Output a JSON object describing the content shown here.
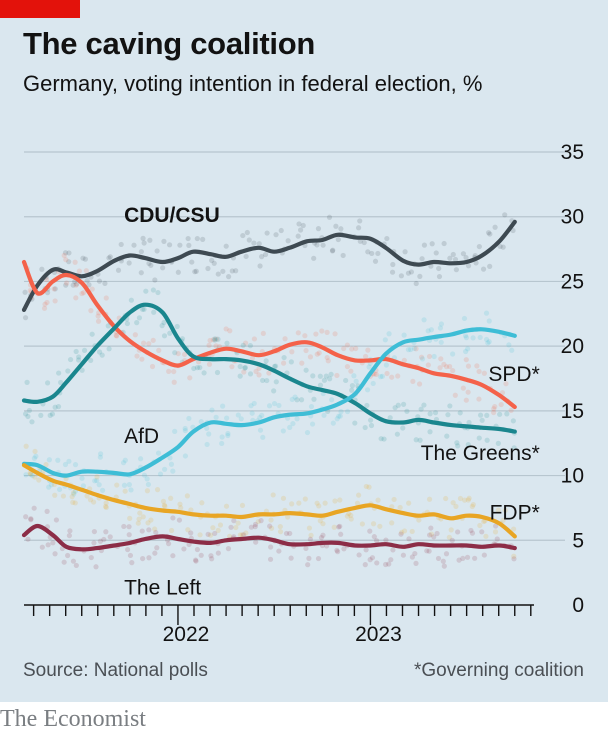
{
  "header": {
    "title": "The caving coalition",
    "subtitle": "Germany, voting intention in federal election, %"
  },
  "footer": {
    "source": "Source: National polls",
    "note": "*Governing coalition",
    "brand": "The Economist"
  },
  "colors": {
    "background": "#dae7ef",
    "accent": "#e3120b",
    "grid": "#b7c6cf"
  },
  "chart_data": {
    "type": "line",
    "title": "The caving coalition",
    "subtitle": "Germany, voting intention in federal election, %",
    "xlabel": "",
    "ylabel": "",
    "ylim": [
      0,
      35
    ],
    "xlim": [
      2021.2,
      2023.85
    ],
    "yticks": [
      0,
      5,
      10,
      15,
      20,
      25,
      30,
      35
    ],
    "xticks": [
      {
        "label": "2022",
        "value": 2022.0
      },
      {
        "label": "2023",
        "value": 2023.0
      }
    ],
    "grid": true,
    "series": [
      {
        "name": "CDU/CSU",
        "color": "#3e4a52",
        "x": [
          2021.2,
          2021.27,
          2021.35,
          2021.42,
          2021.5,
          2021.58,
          2021.67,
          2021.75,
          2021.83,
          2021.92,
          2022.0,
          2022.08,
          2022.17,
          2022.25,
          2022.33,
          2022.42,
          2022.5,
          2022.58,
          2022.67,
          2022.75,
          2022.83,
          2022.92,
          2023.0,
          2023.08,
          2023.17,
          2023.25,
          2023.33,
          2023.42,
          2023.5,
          2023.58,
          2023.67,
          2023.75
        ],
        "values": [
          22.8,
          24.7,
          25.9,
          25.7,
          25.4,
          25.8,
          26.6,
          27.0,
          26.8,
          26.5,
          26.8,
          27.3,
          27.1,
          26.9,
          27.3,
          27.6,
          27.3,
          27.6,
          28.1,
          28.2,
          28.6,
          28.4,
          28.3,
          27.6,
          26.6,
          26.3,
          26.5,
          26.4,
          26.5,
          27.0,
          28.1,
          29.6
        ]
      },
      {
        "name": "SPD*",
        "color": "#f4624a",
        "x": [
          2021.2,
          2021.27,
          2021.35,
          2021.42,
          2021.5,
          2021.58,
          2021.67,
          2021.75,
          2021.83,
          2021.92,
          2022.0,
          2022.08,
          2022.17,
          2022.25,
          2022.33,
          2022.42,
          2022.5,
          2022.58,
          2022.67,
          2022.75,
          2022.83,
          2022.92,
          2023.0,
          2023.08,
          2023.17,
          2023.25,
          2023.33,
          2023.42,
          2023.5,
          2023.58,
          2023.67,
          2023.75
        ],
        "values": [
          26.5,
          24.1,
          25.0,
          25.5,
          24.9,
          23.2,
          21.5,
          20.4,
          19.6,
          18.9,
          18.5,
          19.0,
          19.5,
          19.8,
          19.6,
          19.3,
          19.6,
          20.1,
          20.3,
          19.9,
          19.3,
          18.9,
          18.9,
          19.0,
          18.6,
          18.3,
          17.9,
          17.7,
          17.4,
          17.0,
          16.2,
          15.3
        ]
      },
      {
        "name": "AfD",
        "color": "#1a868e",
        "x": [
          2021.2,
          2021.27,
          2021.35,
          2021.42,
          2021.5,
          2021.58,
          2021.67,
          2021.75,
          2021.83,
          2021.92,
          2022.0,
          2022.08,
          2022.17,
          2022.25,
          2022.33,
          2022.42,
          2022.5,
          2022.58,
          2022.67,
          2022.75,
          2022.83,
          2022.92,
          2023.0,
          2023.08,
          2023.17,
          2023.25,
          2023.33,
          2023.42,
          2023.5,
          2023.58,
          2023.67,
          2023.75
        ],
        "values": [
          15.8,
          15.7,
          16.1,
          17.2,
          18.6,
          20.0,
          21.4,
          22.6,
          23.2,
          22.6,
          20.6,
          19.2,
          19.0,
          19.0,
          18.9,
          18.6,
          18.1,
          17.5,
          16.9,
          16.6,
          16.3,
          15.6,
          14.8,
          14.2,
          14.1,
          14.3,
          14.1,
          13.9,
          13.8,
          13.7,
          13.6,
          13.4
        ]
      },
      {
        "name": "The Greens*",
        "color": "#3ebdd6",
        "x": [
          2021.2,
          2021.27,
          2021.35,
          2021.42,
          2021.5,
          2021.58,
          2021.67,
          2021.75,
          2021.83,
          2021.92,
          2022.0,
          2022.08,
          2022.17,
          2022.25,
          2022.33,
          2022.42,
          2022.5,
          2022.58,
          2022.67,
          2022.75,
          2022.83,
          2022.92,
          2023.0,
          2023.08,
          2023.17,
          2023.25,
          2023.33,
          2023.42,
          2023.5,
          2023.58,
          2023.67,
          2023.75
        ],
        "values": [
          10.9,
          10.8,
          10.2,
          10.0,
          10.3,
          10.3,
          10.2,
          10.1,
          10.6,
          11.4,
          12.2,
          13.4,
          14.1,
          14.0,
          13.9,
          14.1,
          14.5,
          14.7,
          14.8,
          15.1,
          15.5,
          16.3,
          17.9,
          19.4,
          20.3,
          20.5,
          20.7,
          20.9,
          21.2,
          21.3,
          21.1,
          20.8
        ]
      },
      {
        "name": "FDP*",
        "color": "#e8a524",
        "x": [
          2021.2,
          2021.27,
          2021.35,
          2021.42,
          2021.5,
          2021.58,
          2021.67,
          2021.75,
          2021.83,
          2021.92,
          2022.0,
          2022.08,
          2022.17,
          2022.25,
          2022.33,
          2022.42,
          2022.5,
          2022.58,
          2022.67,
          2022.75,
          2022.83,
          2022.92,
          2023.0,
          2023.08,
          2023.17,
          2023.25,
          2023.33,
          2023.42,
          2023.5,
          2023.58,
          2023.67,
          2023.75
        ],
        "values": [
          10.8,
          10.2,
          9.6,
          9.3,
          8.9,
          8.5,
          8.1,
          7.8,
          7.5,
          7.3,
          7.2,
          7.0,
          6.9,
          6.9,
          6.8,
          7.0,
          7.0,
          7.1,
          7.0,
          6.9,
          7.2,
          7.5,
          7.7,
          7.4,
          7.1,
          6.9,
          7.0,
          6.7,
          6.9,
          6.8,
          6.3,
          5.3
        ]
      },
      {
        "name": "The Left",
        "color": "#8c2d47",
        "x": [
          2021.2,
          2021.27,
          2021.35,
          2021.42,
          2021.5,
          2021.58,
          2021.67,
          2021.75,
          2021.83,
          2021.92,
          2022.0,
          2022.08,
          2022.17,
          2022.25,
          2022.33,
          2022.42,
          2022.5,
          2022.58,
          2022.67,
          2022.75,
          2022.83,
          2022.92,
          2023.0,
          2023.08,
          2023.17,
          2023.25,
          2023.33,
          2023.42,
          2023.5,
          2023.58,
          2023.67,
          2023.75
        ],
        "values": [
          5.4,
          6.1,
          5.4,
          4.5,
          4.3,
          4.4,
          4.6,
          4.8,
          5.1,
          5.3,
          5.1,
          4.9,
          4.8,
          5.0,
          5.1,
          5.2,
          5.0,
          4.7,
          4.7,
          4.8,
          4.8,
          4.6,
          4.6,
          4.7,
          4.5,
          4.7,
          4.6,
          4.6,
          4.6,
          4.5,
          4.6,
          4.4
        ]
      }
    ],
    "labels": [
      {
        "text": "CDU/CSU",
        "series": "CDU/CSU",
        "x": 2021.72,
        "y": 29.6,
        "bold": true
      },
      {
        "text": "SPD*",
        "series": "SPD*",
        "x": 2023.88,
        "y": 17.3,
        "anchor": "end"
      },
      {
        "text": "AfD",
        "series": "AfD",
        "x": 2021.72,
        "y": 12.5
      },
      {
        "text": "The Greens*",
        "series": "The Greens*",
        "x": 2023.88,
        "y": 11.2,
        "anchor": "end"
      },
      {
        "text": "FDP*",
        "series": "FDP*",
        "x": 2023.88,
        "y": 6.6,
        "anchor": "end"
      },
      {
        "text": "The Left",
        "series": "The Left",
        "x": 2021.72,
        "y": 0.8
      }
    ]
  }
}
